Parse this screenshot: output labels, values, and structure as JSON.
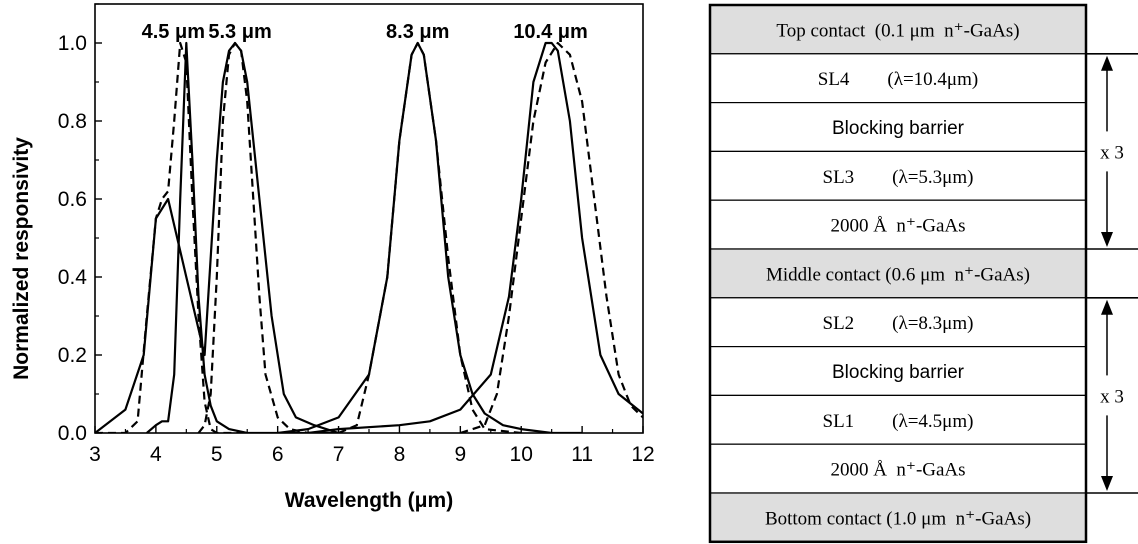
{
  "chart_data": [
    {
      "type": "line",
      "title": "",
      "xlabel": "Wavelength (μm)",
      "ylabel": "Normalized responsivity",
      "xlim": [
        3,
        12
      ],
      "ylim": [
        0,
        1.1
      ],
      "xticks": [
        3,
        4,
        5,
        6,
        7,
        8,
        9,
        10,
        11,
        12
      ],
      "yticks": [
        0.0,
        0.2,
        0.4,
        0.6,
        0.8,
        1.0
      ],
      "ytick_labels": [
        "0.0",
        "0.2",
        "0.4",
        "0.6",
        "0.8",
        "1.0"
      ],
      "peak_labels": [
        {
          "text": "4.5 μm",
          "x": 4.5
        },
        {
          "text": "5.3 μm",
          "x": 5.3
        },
        {
          "text": "8.3 μm",
          "x": 8.3
        },
        {
          "text": "10.4 μm",
          "x": 10.4
        }
      ],
      "series": [
        {
          "style": "solid",
          "x": [
            3.85,
            4.0,
            4.1,
            4.2,
            4.3,
            4.4,
            4.5,
            4.6,
            4.7,
            4.8,
            4.9,
            5.0,
            5.2,
            5.5,
            6.0,
            7.0
          ],
          "y": [
            0.0,
            0.02,
            0.03,
            0.03,
            0.15,
            0.6,
            1.0,
            0.7,
            0.35,
            0.15,
            0.07,
            0.03,
            0.01,
            0.0,
            0.0,
            0.0
          ]
        },
        {
          "style": "dashed",
          "x": [
            3.0,
            3.5,
            3.7,
            3.85,
            4.0,
            4.1,
            4.2,
            4.3,
            4.4,
            4.5,
            4.6,
            4.7,
            4.8,
            4.9,
            5.0,
            5.5
          ],
          "y": [
            0.0,
            0.0,
            0.03,
            0.3,
            0.55,
            0.6,
            0.62,
            0.8,
            1.0,
            0.95,
            0.6,
            0.3,
            0.08,
            0.01,
            0.0,
            0.0
          ]
        },
        {
          "style": "solid",
          "x": [
            3.0,
            3.5,
            3.8,
            4.0,
            4.2,
            4.5,
            4.8,
            5.0,
            5.1,
            5.2,
            5.3,
            5.4,
            5.5,
            5.7,
            5.9,
            6.1,
            6.3,
            6.6,
            7.0
          ],
          "y": [
            0.0,
            0.06,
            0.2,
            0.55,
            0.6,
            0.4,
            0.2,
            0.7,
            0.9,
            0.98,
            1.0,
            0.98,
            0.9,
            0.6,
            0.3,
            0.1,
            0.04,
            0.02,
            0.0
          ]
        },
        {
          "style": "dashed",
          "x": [
            4.7,
            4.8,
            4.9,
            5.0,
            5.1,
            5.2,
            5.3,
            5.4,
            5.5,
            5.6,
            5.7,
            5.8,
            6.0,
            6.2,
            6.5,
            7.0
          ],
          "y": [
            0.0,
            0.02,
            0.1,
            0.4,
            0.8,
            0.97,
            1.0,
            0.98,
            0.85,
            0.6,
            0.35,
            0.15,
            0.04,
            0.01,
            0.0,
            0.0
          ]
        },
        {
          "style": "solid",
          "x": [
            6.0,
            6.5,
            7.0,
            7.5,
            7.8,
            8.0,
            8.2,
            8.3,
            8.4,
            8.6,
            8.8,
            9.0,
            9.2,
            9.4,
            9.7,
            10.0,
            10.5,
            11.0
          ],
          "y": [
            0.0,
            0.01,
            0.04,
            0.15,
            0.4,
            0.75,
            0.97,
            1.0,
            0.97,
            0.75,
            0.4,
            0.2,
            0.1,
            0.05,
            0.02,
            0.01,
            0.0,
            0.0
          ]
        },
        {
          "style": "dashed",
          "x": [
            7.0,
            7.3,
            7.5,
            7.8,
            8.0,
            8.2,
            8.3,
            8.4,
            8.6,
            8.8,
            9.0,
            9.2,
            9.4,
            10.0
          ],
          "y": [
            0.0,
            0.02,
            0.15,
            0.4,
            0.75,
            0.97,
            1.0,
            0.97,
            0.75,
            0.45,
            0.2,
            0.06,
            0.01,
            0.0
          ]
        },
        {
          "style": "solid",
          "x": [
            6.5,
            7.0,
            8.0,
            8.5,
            9.0,
            9.5,
            9.8,
            10.0,
            10.2,
            10.4,
            10.5,
            10.6,
            10.8,
            11.0,
            11.3,
            11.6,
            12.0
          ],
          "y": [
            0.0,
            0.01,
            0.02,
            0.03,
            0.06,
            0.15,
            0.35,
            0.6,
            0.9,
            1.0,
            1.0,
            0.98,
            0.8,
            0.5,
            0.2,
            0.1,
            0.05
          ]
        },
        {
          "style": "dashed",
          "x": [
            9.0,
            9.4,
            9.6,
            9.8,
            10.0,
            10.2,
            10.4,
            10.6,
            10.8,
            11.0,
            11.2,
            11.4,
            11.6,
            11.8,
            12.0
          ],
          "y": [
            0.0,
            0.02,
            0.1,
            0.3,
            0.55,
            0.8,
            0.95,
            1.0,
            0.97,
            0.85,
            0.6,
            0.35,
            0.15,
            0.07,
            0.04
          ]
        }
      ]
    },
    {
      "type": "table",
      "title": "",
      "layers": [
        {
          "text": "Top contact  (0.1 μm  n⁺-GaAs)",
          "shade": true,
          "font": "serif"
        },
        {
          "text": "SL4        (λ=10.4μm)",
          "shade": false,
          "font": "serif"
        },
        {
          "text": "Blocking barrier",
          "shade": false,
          "font": "sans"
        },
        {
          "text": "SL3        (λ=5.3μm)",
          "shade": false,
          "font": "serif"
        },
        {
          "text": "2000 Å  n⁺-GaAs",
          "shade": false,
          "font": "serif"
        },
        {
          "text": "Middle contact (0.6 μm  n⁺-GaAs)",
          "shade": true,
          "font": "serif"
        },
        {
          "text": "SL2        (λ=8.3μm)",
          "shade": false,
          "font": "serif"
        },
        {
          "text": "Blocking barrier",
          "shade": false,
          "font": "sans"
        },
        {
          "text": "SL1        (λ=4.5μm)",
          "shade": false,
          "font": "serif"
        },
        {
          "text": "2000 Å  n⁺-GaAs",
          "shade": false,
          "font": "serif"
        },
        {
          "text": "Bottom contact (1.0 μm  n⁺-GaAs)",
          "shade": true,
          "font": "serif"
        }
      ],
      "repeat_labels": [
        {
          "text": "x 3",
          "from_layer": 1,
          "to_layer": 4
        },
        {
          "text": "x 3",
          "from_layer": 6,
          "to_layer": 9
        }
      ]
    }
  ]
}
